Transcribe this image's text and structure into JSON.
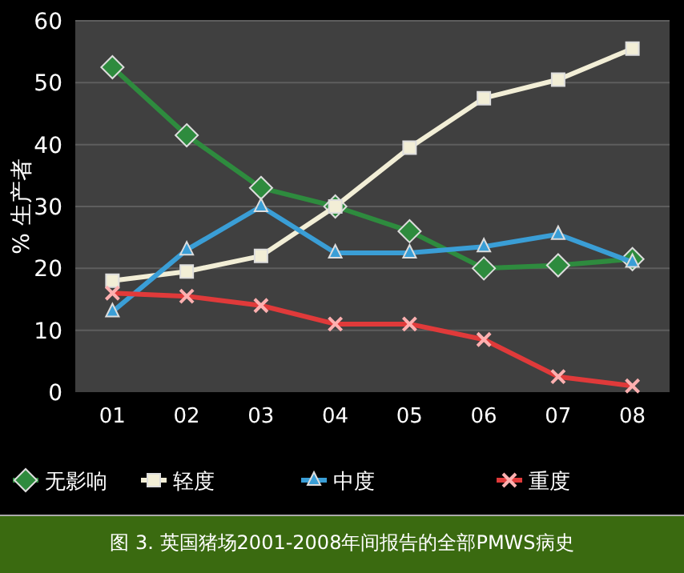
{
  "chart_data": {
    "type": "line",
    "ylabel": "% 生产者",
    "categories": [
      "01",
      "02",
      "03",
      "04",
      "05",
      "06",
      "07",
      "08"
    ],
    "series": [
      {
        "name": "无影响",
        "color": "#2e8b3e",
        "marker": "diamond",
        "values": [
          52.5,
          41.5,
          33,
          30,
          26,
          20,
          20.5,
          21.5
        ]
      },
      {
        "name": "轻度",
        "color": "#f2eed6",
        "marker": "square",
        "values": [
          18,
          19.5,
          22,
          30,
          39.5,
          47.5,
          50.5,
          55.5
        ]
      },
      {
        "name": "中度",
        "color": "#3a9ed6",
        "marker": "triangle",
        "values": [
          13,
          23,
          30,
          22.5,
          22.5,
          23.5,
          25.5,
          21
        ]
      },
      {
        "name": "重度",
        "color": "#e03a3a",
        "marker": "cross",
        "values": [
          16,
          15.5,
          14,
          11,
          11,
          8.5,
          2.5,
          1
        ]
      }
    ],
    "ylim": [
      0,
      60
    ],
    "yticks": [
      0,
      10,
      20,
      30,
      40,
      50,
      60
    ],
    "grid": "y",
    "legend": "bottom",
    "annotations": [
      "图 3. 英国猪场2001-2008年间报告的全部PMWS病史"
    ]
  }
}
